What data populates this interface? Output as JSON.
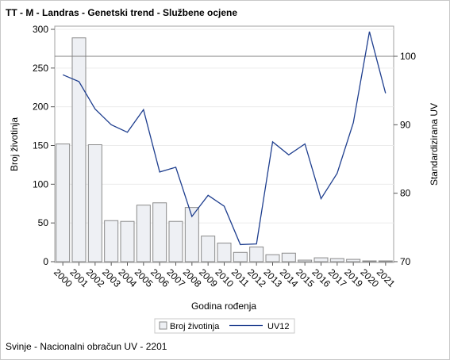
{
  "chart_data": {
    "type": "bar",
    "title": "TT - M - Landras - Genetski trend - Službene ocjene",
    "footnote": "Svinje - Nacionalni obračun UV - 2201",
    "xlabel": "Godina rođenja",
    "ylabel": "Broj životinja",
    "y2label": "Standardizirana UV",
    "categories": [
      "2000",
      "2001",
      "2002",
      "2003",
      "2004",
      "2005",
      "2006",
      "2007",
      "2008",
      "2009",
      "2010",
      "2011",
      "2012",
      "2013",
      "2014",
      "2015",
      "2016",
      "2017",
      "2019",
      "2020",
      "2021"
    ],
    "series": [
      {
        "name": "Broj životinja",
        "type": "bar",
        "axis": "left",
        "values": [
          152,
          289,
          151,
          53,
          52,
          73,
          76,
          52,
          70,
          33,
          24,
          12,
          19,
          9,
          11,
          2,
          5,
          4,
          3,
          1,
          1
        ]
      },
      {
        "name": "UV12",
        "type": "line",
        "axis": "right",
        "values": [
          97.3,
          96.3,
          92.3,
          90.0,
          88.9,
          92.2,
          83.1,
          83.8,
          76.6,
          79.7,
          78.1,
          72.5,
          72.6,
          87.5,
          85.6,
          87.2,
          79.2,
          82.9,
          90.3,
          103.6,
          94.6
        ]
      }
    ],
    "ylim": [
      0,
      300
    ],
    "yticks": [
      0,
      50,
      100,
      150,
      200,
      250,
      300
    ],
    "y2lim": [
      70,
      104.4
    ],
    "y2ticks": [
      70,
      80,
      90,
      100
    ],
    "reference_line": 100,
    "legend_position": "bottom",
    "colors": {
      "bar_fill": "#eef0f4",
      "bar_stroke": "#8a8a8a",
      "line": "#1f3f8f",
      "reference": "#808080"
    }
  }
}
